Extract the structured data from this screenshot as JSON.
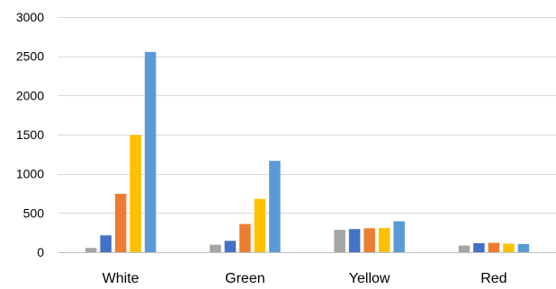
{
  "chart_data": {
    "type": "bar",
    "title": "",
    "xlabel": "",
    "ylabel": "",
    "categories": [
      "White",
      "Green",
      "Yellow",
      "Red"
    ],
    "ylim": [
      0,
      3000
    ],
    "yticks": [
      0,
      500,
      1000,
      1500,
      2000,
      2500,
      3000
    ],
    "grid": true,
    "legend": "none",
    "series": [
      {
        "color": "#a5a5a5",
        "values": [
          55,
          95,
          285,
          85
        ]
      },
      {
        "color": "#4472c4",
        "values": [
          215,
          145,
          295,
          115
        ]
      },
      {
        "color": "#ed7d31",
        "values": [
          745,
          360,
          305,
          120
        ]
      },
      {
        "color": "#ffc000",
        "values": [
          1495,
          680,
          310,
          110
        ]
      },
      {
        "color": "#5b9bd5",
        "values": [
          2555,
          1165,
          395,
          105
        ]
      }
    ]
  }
}
